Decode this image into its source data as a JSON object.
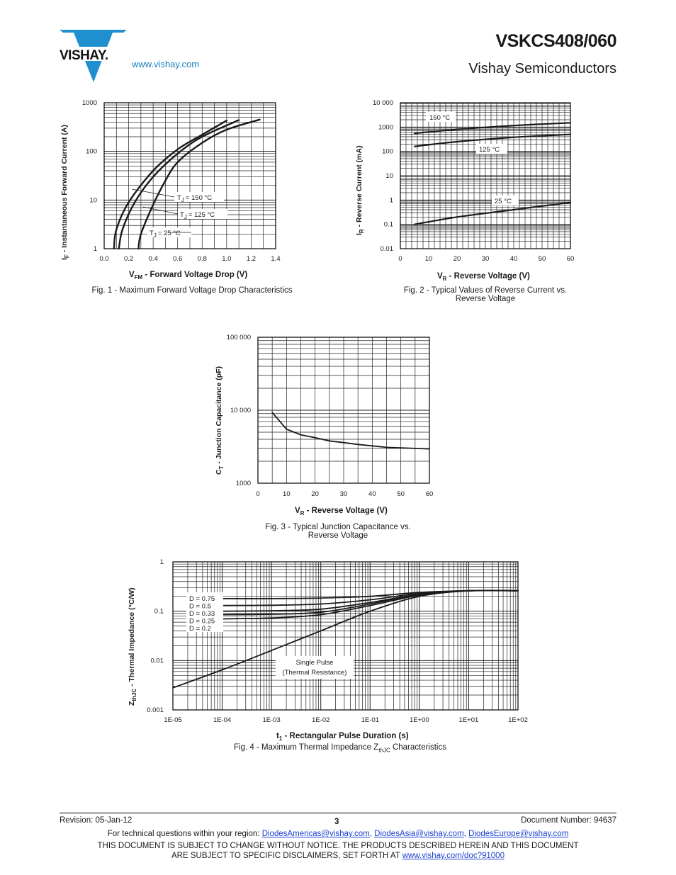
{
  "header": {
    "part_number": "VSKCS408/060",
    "company": "Vishay Semiconductors",
    "website": "www.vishay.com",
    "logo_text": "VISHAY."
  },
  "figures": {
    "fig1": {
      "caption": "Fig. 1 - Maximum Forward Voltage Drop Characteristics",
      "ylabel_main": "I",
      "ylabel_sub": "F",
      "ylabel_rest": " - Instantaneous Forward Current (A)",
      "xlabel_main": "V",
      "xlabel_sub": "FM",
      "xlabel_rest": " - Forward Voltage Drop (V)",
      "x_ticks": [
        "0.0",
        "0.2",
        "0.4",
        "0.6",
        "0.8",
        "1.0",
        "1.2",
        "1.4"
      ],
      "y_ticks": [
        "1",
        "10",
        "100",
        "1000"
      ],
      "label_150": "= 150 °C",
      "label_125": "= 125 °C",
      "label_25": "= 25 °C",
      "tj_main": "T",
      "tj_sub": "J"
    },
    "fig2": {
      "caption_line1": "Fig. 2 - Typical Values of Reverse Current vs.",
      "caption_line2": "Reverse Voltage",
      "ylabel_main": "I",
      "ylabel_sub": "R",
      "ylabel_rest": " - Reverse Current (mA)",
      "xlabel_main": "V",
      "xlabel_sub": "R",
      "xlabel_rest": " - Reverse Voltage (V)",
      "x_ticks": [
        "0",
        "10",
        "20",
        "30",
        "40",
        "50",
        "60"
      ],
      "y_ticks": [
        "0.01",
        "0.1",
        "1",
        "10",
        "100",
        "1000",
        "10 000"
      ],
      "label_150": "150 °C",
      "label_125": "125 °C",
      "label_25": "25 °C"
    },
    "fig3": {
      "caption_line1": "Fig. 3 - Typical Junction Capacitance vs.",
      "caption_line2": "Reverse Voltage",
      "ylabel_main": "C",
      "ylabel_sub": "T",
      "ylabel_rest": " - Junction Capacitance (pF)",
      "xlabel_main": "V",
      "xlabel_sub": "R",
      "xlabel_rest": " - Reverse Voltage (V)",
      "x_ticks": [
        "0",
        "10",
        "20",
        "30",
        "40",
        "50",
        "60"
      ],
      "y_ticks": [
        "1000",
        "10 000",
        "100 000"
      ]
    },
    "fig4": {
      "caption_main": "Fig. 4 - Maximum Thermal Impedance Z",
      "caption_sub": "thJC",
      "caption_rest": " Characteristics",
      "ylabel_main": "Z",
      "ylabel_sub": "thJC",
      "ylabel_rest": " - Thermal Impedance (°C/W)",
      "xlabel_main": "t",
      "xlabel_sub": "1",
      "xlabel_rest": " - Rectangular Pulse Duration (s)",
      "x_ticks": [
        "1E-05",
        "1E-04",
        "1E-03",
        "1E-02",
        "1E-01",
        "1E+00",
        "1E+01",
        "1E+02"
      ],
      "y_ticks": [
        "0.001",
        "0.01",
        "0.1",
        "1"
      ],
      "legend": [
        "D = 0.75",
        "D = 0.5",
        "D = 0.33",
        "D = 0.25",
        "D = 0.2"
      ],
      "single_pulse_line1": "Single Pulse",
      "single_pulse_line2": "(Thermal Resistance)"
    }
  },
  "chart_data": [
    {
      "type": "line",
      "xlabel": "VFM - Forward Voltage Drop (V)",
      "ylabel": "IF - Instantaneous Forward Current (A)",
      "xlim": [
        0.0,
        1.4
      ],
      "ylim": [
        1,
        1000
      ],
      "yscale": "log",
      "grid": true,
      "series": [
        {
          "name": "TJ = 150 °C",
          "x": [
            0.08,
            0.1,
            0.2,
            0.4,
            0.6,
            0.8,
            1.0
          ],
          "y": [
            1,
            2.5,
            9,
            40,
            110,
            220,
            430
          ]
        },
        {
          "name": "TJ = 125 °C",
          "x": [
            0.12,
            0.15,
            0.25,
            0.4,
            0.6,
            0.8,
            1.1
          ],
          "y": [
            1,
            2.5,
            9,
            30,
            90,
            200,
            440
          ]
        },
        {
          "name": "TJ = 25 °C",
          "x": [
            0.28,
            0.3,
            0.4,
            0.5,
            0.6,
            0.8,
            1.0,
            1.27
          ],
          "y": [
            1,
            2,
            8,
            25,
            60,
            150,
            280,
            450
          ]
        }
      ]
    },
    {
      "type": "line",
      "xlabel": "VR - Reverse Voltage (V)",
      "ylabel": "IR - Reverse Current (mA)",
      "xlim": [
        0,
        60
      ],
      "ylim": [
        0.01,
        10000
      ],
      "yscale": "log",
      "grid": true,
      "series": [
        {
          "name": "150 °C",
          "x": [
            5,
            20,
            40,
            60
          ],
          "y": [
            550,
            800,
            1150,
            1500
          ]
        },
        {
          "name": "125 °C",
          "x": [
            5,
            20,
            40,
            60
          ],
          "y": [
            160,
            250,
            380,
            500
          ]
        },
        {
          "name": "25 °C",
          "x": [
            5,
            20,
            40,
            60
          ],
          "y": [
            0.1,
            0.2,
            0.4,
            0.8
          ]
        }
      ]
    },
    {
      "type": "line",
      "xlabel": "VR - Reverse Voltage (V)",
      "ylabel": "CT - Junction Capacitance (pF)",
      "xlim": [
        0,
        60
      ],
      "ylim": [
        1000,
        100000
      ],
      "yscale": "log",
      "grid": true,
      "series": [
        {
          "x": [
            5,
            10,
            15,
            20,
            25,
            30,
            35,
            40,
            45,
            50,
            55,
            60
          ],
          "y": [
            9300,
            5500,
            4600,
            4200,
            3800,
            3600,
            3400,
            3250,
            3100,
            3050,
            3000,
            2950
          ]
        }
      ]
    },
    {
      "type": "line",
      "xlabel": "t1 - Rectangular Pulse Duration (s)",
      "ylabel": "ZthJC - Thermal Impedance (°C/W)",
      "xlim": [
        1e-05,
        100
      ],
      "ylim": [
        0.001,
        1
      ],
      "xscale": "log",
      "yscale": "log",
      "grid": true,
      "series": [
        {
          "name": "D = 0.75",
          "x": [
            0.0001,
            0.001,
            0.01,
            0.1,
            1,
            10,
            100
          ],
          "y": [
            0.18,
            0.18,
            0.185,
            0.2,
            0.24,
            0.26,
            0.26
          ]
        },
        {
          "name": "D = 0.5",
          "x": [
            0.0001,
            0.001,
            0.01,
            0.1,
            1,
            10,
            100
          ],
          "y": [
            0.13,
            0.132,
            0.14,
            0.17,
            0.23,
            0.26,
            0.26
          ]
        },
        {
          "name": "D = 0.33",
          "x": [
            0.0001,
            0.001,
            0.01,
            0.1,
            1,
            10,
            100
          ],
          "y": [
            0.1,
            0.102,
            0.11,
            0.15,
            0.22,
            0.26,
            0.26
          ]
        },
        {
          "name": "D = 0.25",
          "x": [
            0.0001,
            0.001,
            0.01,
            0.1,
            1,
            10,
            100
          ],
          "y": [
            0.085,
            0.087,
            0.095,
            0.14,
            0.22,
            0.26,
            0.26
          ]
        },
        {
          "name": "D = 0.2",
          "x": [
            0.0001,
            0.001,
            0.01,
            0.1,
            1,
            10,
            100
          ],
          "y": [
            0.07,
            0.073,
            0.085,
            0.13,
            0.21,
            0.26,
            0.26
          ]
        },
        {
          "name": "Single Pulse (Thermal Resistance)",
          "x": [
            1e-05,
            0.0001,
            0.001,
            0.01,
            0.1,
            1,
            10,
            100
          ],
          "y": [
            0.0028,
            0.0065,
            0.016,
            0.04,
            0.1,
            0.2,
            0.26,
            0.26
          ]
        }
      ]
    }
  ],
  "footer": {
    "revision": "Revision: 05-Jan-12",
    "page": "3",
    "doc_number": "Document Number: 94637",
    "tech_questions": "For technical questions within your region: ",
    "email1": "DiodesAmericas@vishay.com",
    "email2": "DiodesAsia@vishay.com",
    "email3": "DiodesEurope@vishay.com",
    "sep": ", ",
    "notice_line1": "THIS DOCUMENT IS SUBJECT TO CHANGE WITHOUT NOTICE. THE PRODUCTS DESCRIBED HEREIN AND THIS DOCUMENT",
    "notice_line2": "ARE SUBJECT TO SPECIFIC DISCLAIMERS, SET FORTH AT ",
    "disclaimer_link": "www.vishay.com/doc?91000"
  }
}
